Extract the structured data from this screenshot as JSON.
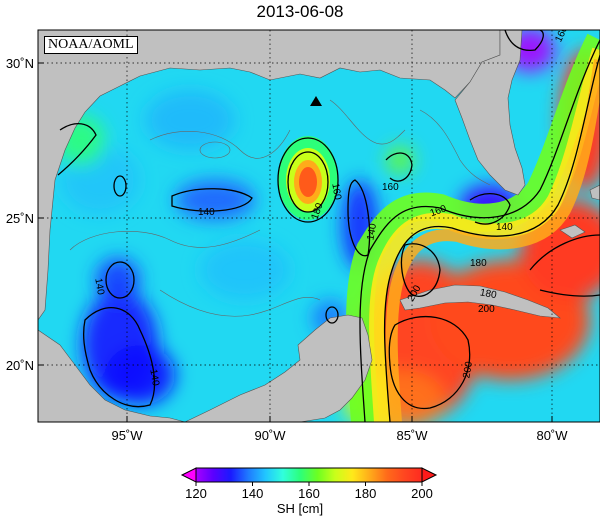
{
  "title": "2013-06-08",
  "credit": "NOAA/AOML",
  "colorbar": {
    "unit_label": "SH [cm]",
    "ticks": [
      "120",
      "140",
      "160",
      "180",
      "200"
    ],
    "range": [
      120,
      200
    ],
    "colors": [
      "#a800ff",
      "#5a00ff",
      "#1a1aff",
      "#1f7aff",
      "#21c6ff",
      "#31ffdc",
      "#2cff7a",
      "#6dff21",
      "#c9ff1a",
      "#ffe91a",
      "#ffab1a",
      "#ff6a1a",
      "#ff4620",
      "#ff2a20"
    ]
  },
  "axes": {
    "lon_labels": [
      "95˚W",
      "90˚W",
      "85˚W",
      "80˚W"
    ],
    "lat_labels": [
      "30˚N",
      "25˚N",
      "20˚N"
    ],
    "lon_range": [
      -98,
      -77.5
    ],
    "lat_range": [
      18,
      31
    ]
  },
  "contour_labels": [
    "140",
    "140",
    "140",
    "160",
    "160",
    "180",
    "160",
    "160",
    "180",
    "140",
    "200",
    "200",
    "200",
    "180",
    "140"
  ],
  "marker": {
    "symbol": "triangle",
    "lon": -88.5,
    "lat": 28.5
  },
  "colors": {
    "land": "#c0c0c0",
    "grid": "#000000",
    "contour_major": "#000000",
    "contour_minor": "#808080"
  }
}
